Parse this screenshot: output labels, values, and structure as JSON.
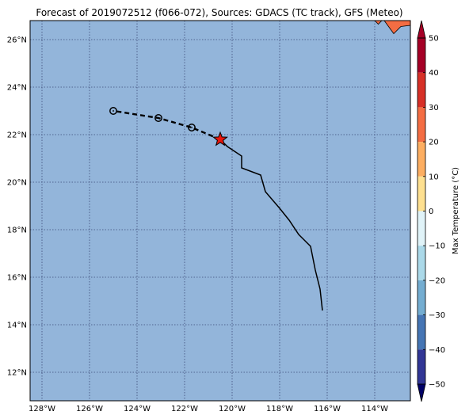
{
  "title": "Forecast of 2019072512 (f066-072), Sources: GDACS (TC track), GFS (Meteo)",
  "map": {
    "lon_range": [
      -128.5,
      -112.5
    ],
    "lat_range": [
      10.8,
      26.8
    ],
    "ocean_color": "#93b5da",
    "grid_color": "#3d4b78",
    "lat_ticks": [
      {
        "value": 26,
        "label": "26°N"
      },
      {
        "value": 24,
        "label": "24°N"
      },
      {
        "value": 22,
        "label": "22°N"
      },
      {
        "value": 20,
        "label": "20°N"
      },
      {
        "value": 18,
        "label": "18°N"
      },
      {
        "value": 16,
        "label": "16°N"
      },
      {
        "value": 14,
        "label": "14°N"
      },
      {
        "value": 12,
        "label": "12°N"
      }
    ],
    "lon_ticks": [
      {
        "value": -128,
        "label": "128°W"
      },
      {
        "value": -126,
        "label": "126°W"
      },
      {
        "value": -124,
        "label": "124°W"
      },
      {
        "value": -122,
        "label": "122°W"
      },
      {
        "value": -120,
        "label": "120°W"
      },
      {
        "value": -118,
        "label": "118°W"
      },
      {
        "value": -116,
        "label": "116°W"
      },
      {
        "value": -114,
        "label": "114°W"
      }
    ]
  },
  "track": {
    "past": [
      [
        -116.2,
        14.6
      ],
      [
        -116.3,
        15.5
      ],
      [
        -116.5,
        16.3
      ],
      [
        -116.7,
        17.3
      ],
      [
        -117.2,
        17.8
      ],
      [
        -117.6,
        18.4
      ],
      [
        -118.0,
        18.9
      ],
      [
        -118.6,
        19.6
      ],
      [
        -118.8,
        20.3
      ],
      [
        -119.6,
        20.6
      ],
      [
        -119.6,
        21.1
      ],
      [
        -120.2,
        21.5
      ],
      [
        -120.5,
        21.8
      ]
    ],
    "current": [
      -120.5,
      21.8
    ],
    "forecast": [
      [
        -120.5,
        21.8
      ],
      [
        -121.7,
        22.3
      ],
      [
        -123.1,
        22.7
      ],
      [
        -125.0,
        23.0
      ]
    ],
    "forecast_points": [
      [
        -121.7,
        22.3
      ],
      [
        -123.1,
        22.7
      ],
      [
        -125.0,
        23.0
      ]
    ],
    "current_marker_color": "#e8160c"
  },
  "colorbar": {
    "label": "Max Temperature (°C)",
    "min": -50,
    "max": 50,
    "ticks": [
      50,
      40,
      30,
      20,
      10,
      0,
      -10,
      -20,
      -30,
      -40,
      -50
    ],
    "bands": [
      {
        "from": 40,
        "to": 50,
        "color": "#a50026"
      },
      {
        "from": 30,
        "to": 40,
        "color": "#d73027"
      },
      {
        "from": 20,
        "to": 30,
        "color": "#f46d43"
      },
      {
        "from": 10,
        "to": 20,
        "color": "#fdae61"
      },
      {
        "from": 0,
        "to": 10,
        "color": "#fee090"
      },
      {
        "from": -10,
        "to": 0,
        "color": "#e0f3f8"
      },
      {
        "from": -20,
        "to": -10,
        "color": "#abd9e9"
      },
      {
        "from": -30,
        "to": -20,
        "color": "#74add1"
      },
      {
        "from": -40,
        "to": -30,
        "color": "#4575b4"
      },
      {
        "from": -50,
        "to": -40,
        "color": "#313695"
      }
    ],
    "over_color": "#a50026",
    "under_color": "#000066"
  },
  "land_corner_color": "#f46d43"
}
